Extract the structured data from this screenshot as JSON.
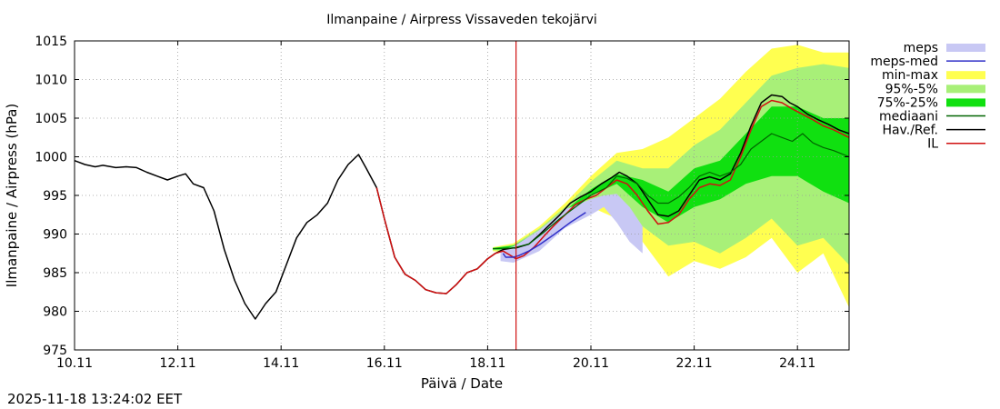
{
  "chart_data": {
    "type": "line",
    "title": "Ilmanpaine / Airpress Vissaveden tekojärvi",
    "xlabel": "Päivä / Date",
    "ylabel": "Ilmanpaine / Airpress (hPa)",
    "xlim": [
      10.0,
      25.0
    ],
    "ylim": [
      975,
      1015
    ],
    "x_unit": "day of November (fractional)",
    "x_ticks": [
      10,
      12,
      14,
      16,
      18,
      20,
      22,
      24
    ],
    "x_tick_labels": [
      "10.11",
      "12.11",
      "14.11",
      "16.11",
      "18.11",
      "20.11",
      "22.11",
      "24.11"
    ],
    "y_ticks": [
      975,
      980,
      985,
      990,
      995,
      1000,
      1005,
      1010,
      1015
    ],
    "y_tick_labels": [
      "975",
      "980",
      "985",
      "990",
      "995",
      "1000",
      "1005",
      "1010",
      "1015"
    ],
    "forecast_start": 18.55,
    "legend_position": "outside-right",
    "legend": [
      {
        "label": "meps",
        "kind": "band",
        "color": "#c8c8f4"
      },
      {
        "label": "meps-med",
        "kind": "line",
        "color": "#3030c8"
      },
      {
        "label": "min-max",
        "kind": "band",
        "color": "#ffff50"
      },
      {
        "label": "95%-5%",
        "kind": "band",
        "color": "#a8f078"
      },
      {
        "label": "75%-25%",
        "kind": "band",
        "color": "#10e010"
      },
      {
        "label": "mediaani",
        "kind": "line",
        "color": "#006400"
      },
      {
        "label": "Hav./Ref.",
        "kind": "line",
        "color": "#000000"
      },
      {
        "label": "IL",
        "kind": "line",
        "color": "#d01010"
      }
    ],
    "bands": {
      "min_max": {
        "x": [
          18.1,
          18.5,
          19.0,
          19.5,
          20.0,
          20.5,
          21.0,
          21.5,
          22.0,
          22.5,
          23.0,
          23.5,
          24.0,
          24.5,
          25.0
        ],
        "upper": [
          988.3,
          988.8,
          991.0,
          994.0,
          997.5,
          1000.5,
          1001.0,
          1002.5,
          1005.0,
          1007.5,
          1011.0,
          1014.0,
          1014.5,
          1013.5,
          1013.5
        ],
        "lower": [
          987.8,
          987.5,
          989.0,
          991.5,
          993.5,
          992.0,
          989.0,
          984.5,
          986.5,
          985.5,
          987.0,
          989.5,
          985.0,
          987.5,
          980.5
        ]
      },
      "p95_5": {
        "x": [
          18.1,
          18.5,
          19.0,
          19.5,
          20.0,
          20.5,
          21.0,
          21.5,
          22.0,
          22.5,
          23.0,
          23.5,
          24.0,
          24.5,
          25.0
        ],
        "upper": [
          988.2,
          988.6,
          990.7,
          993.5,
          996.8,
          999.5,
          998.5,
          998.5,
          1001.5,
          1003.5,
          1007.0,
          1010.5,
          1011.5,
          1012.0,
          1011.5
        ],
        "lower": [
          987.9,
          987.8,
          989.3,
          991.8,
          994.2,
          993.5,
          991.0,
          988.5,
          989.0,
          987.5,
          989.5,
          992.0,
          988.5,
          989.5,
          986.0
        ]
      },
      "p75_25": {
        "x": [
          18.1,
          18.5,
          19.0,
          19.5,
          20.0,
          20.5,
          21.0,
          21.5,
          22.0,
          22.5,
          23.0,
          23.5,
          24.0,
          24.5,
          25.0
        ],
        "upper": [
          988.2,
          988.5,
          990.4,
          993.0,
          995.8,
          997.8,
          997.0,
          995.5,
          998.5,
          999.5,
          1003.0,
          1006.5,
          1006.5,
          1005.0,
          1005.0
        ],
        "lower": [
          988.0,
          988.0,
          989.6,
          992.3,
          995.0,
          996.5,
          993.5,
          991.5,
          993.5,
          994.5,
          996.5,
          997.5,
          997.5,
          995.5,
          994.0
        ]
      },
      "meps": {
        "x": [
          18.25,
          18.5,
          19.0,
          19.5,
          20.0,
          20.25,
          20.5,
          20.75,
          21.0
        ],
        "upper": [
          988.0,
          988.4,
          990.5,
          993.2,
          994.5,
          995.0,
          995.2,
          993.5,
          991.0
        ],
        "lower": [
          986.5,
          986.3,
          987.8,
          990.8,
          992.5,
          993.5,
          991.5,
          989.0,
          987.5
        ]
      }
    },
    "series": [
      {
        "name": "Hav./Ref.",
        "color": "#000000",
        "x": [
          10.0,
          10.2,
          10.4,
          10.55,
          10.8,
          11.0,
          11.2,
          11.4,
          11.6,
          11.8,
          12.0,
          12.15,
          12.3,
          12.5,
          12.7,
          12.9,
          13.1,
          13.3,
          13.5,
          13.7,
          13.9,
          14.1,
          14.3,
          14.5,
          14.7,
          14.9,
          15.1,
          15.3,
          15.5,
          15.65,
          15.85,
          16.0,
          16.2,
          16.4,
          16.6,
          16.8,
          17.0,
          17.2,
          17.4,
          17.6,
          17.8,
          18.0,
          18.15,
          18.3,
          18.5,
          18.55,
          18.8,
          19.0,
          19.2,
          19.4,
          19.6,
          19.8,
          20.0,
          20.2,
          20.4,
          20.55,
          20.7,
          20.9,
          21.1,
          21.3,
          21.5,
          21.7,
          21.9,
          22.1,
          22.3,
          22.5,
          22.7,
          22.9,
          23.1,
          23.3,
          23.5,
          23.7,
          23.85,
          24.0,
          24.2,
          24.4,
          24.6,
          24.8,
          25.0
        ],
        "y": [
          999.5,
          999.0,
          998.7,
          998.9,
          998.6,
          998.7,
          998.6,
          998.0,
          997.5,
          997.0,
          997.5,
          997.8,
          996.5,
          996.0,
          993.0,
          988.0,
          984.0,
          981.0,
          979.0,
          981.0,
          982.5,
          986.0,
          989.5,
          991.5,
          992.5,
          994.0,
          997.0,
          999.0,
          1000.3,
          998.5,
          996.0,
          992.0,
          987.0,
          984.8,
          984.0,
          982.8,
          982.4,
          982.3,
          983.5,
          985.0,
          985.5,
          986.8,
          987.5,
          988.0,
          988.2,
          988.2,
          988.7,
          989.9,
          991.2,
          992.5,
          994.0,
          994.8,
          995.5,
          996.5,
          997.3,
          998.0,
          997.5,
          996.5,
          994.5,
          992.5,
          992.3,
          993.0,
          995.0,
          997.0,
          997.4,
          997.0,
          997.8,
          1000.5,
          1004.0,
          1007.0,
          1008.0,
          1007.8,
          1007.0,
          1006.5,
          1005.5,
          1004.8,
          1004.2,
          1003.5,
          1003.0
        ]
      },
      {
        "name": "IL",
        "color": "#d01010",
        "x": [
          15.85,
          16.0,
          16.2,
          16.4,
          16.6,
          16.8,
          17.0,
          17.2,
          17.4,
          17.6,
          17.8,
          18.0,
          18.15,
          18.3,
          18.5,
          18.55,
          18.7,
          18.9,
          19.1,
          19.3,
          19.5,
          19.7,
          19.9,
          20.1,
          20.3,
          20.5,
          20.7,
          20.9,
          21.1,
          21.3,
          21.5,
          21.7,
          21.9,
          22.1,
          22.3,
          22.5,
          22.7,
          22.9,
          23.1,
          23.3,
          23.5,
          23.7,
          23.9,
          24.1,
          24.3,
          24.5,
          24.7,
          25.0
        ],
        "y": [
          996.0,
          992.0,
          987.0,
          984.8,
          984.0,
          982.8,
          982.4,
          982.3,
          983.5,
          985.0,
          985.5,
          986.8,
          987.5,
          987.8,
          987.0,
          986.8,
          987.2,
          988.3,
          989.8,
          991.2,
          992.5,
          993.8,
          994.5,
          995.0,
          996.0,
          997.0,
          996.5,
          995.0,
          993.0,
          991.3,
          991.5,
          992.5,
          994.5,
          996.0,
          996.5,
          996.3,
          997.0,
          1000.0,
          1003.5,
          1006.5,
          1007.3,
          1007.0,
          1006.2,
          1005.5,
          1004.8,
          1004.0,
          1003.5,
          1002.5
        ]
      },
      {
        "name": "mediaani",
        "color": "#006400",
        "x": [
          18.1,
          18.5,
          18.8,
          19.1,
          19.4,
          19.7,
          20.0,
          20.3,
          20.5,
          20.7,
          20.9,
          21.1,
          21.3,
          21.5,
          21.7,
          21.9,
          22.1,
          22.3,
          22.5,
          22.7,
          22.9,
          23.1,
          23.3,
          23.5,
          23.7,
          23.9,
          24.1,
          24.3,
          24.5,
          24.7,
          25.0
        ],
        "y": [
          988.1,
          988.2,
          988.7,
          990.3,
          992.0,
          993.5,
          995.0,
          996.0,
          997.5,
          997.2,
          996.5,
          995.0,
          994.0,
          994.0,
          994.8,
          996.0,
          997.5,
          998.0,
          997.5,
          998.0,
          999.0,
          1001.0,
          1002.0,
          1003.0,
          1002.5,
          1002.0,
          1003.0,
          1001.8,
          1001.2,
          1000.8,
          1000.0
        ]
      },
      {
        "name": "meps-med",
        "color": "#3030c8",
        "x": [
          18.3,
          18.35,
          18.5,
          18.6,
          18.8,
          19.0,
          19.3,
          19.6,
          19.9
        ],
        "y": [
          987.5,
          987.0,
          987.0,
          987.2,
          987.8,
          988.6,
          990.0,
          991.5,
          992.8
        ]
      }
    ]
  },
  "footer": {
    "timestamp": "2025-11-18 13:24:02 EET"
  }
}
